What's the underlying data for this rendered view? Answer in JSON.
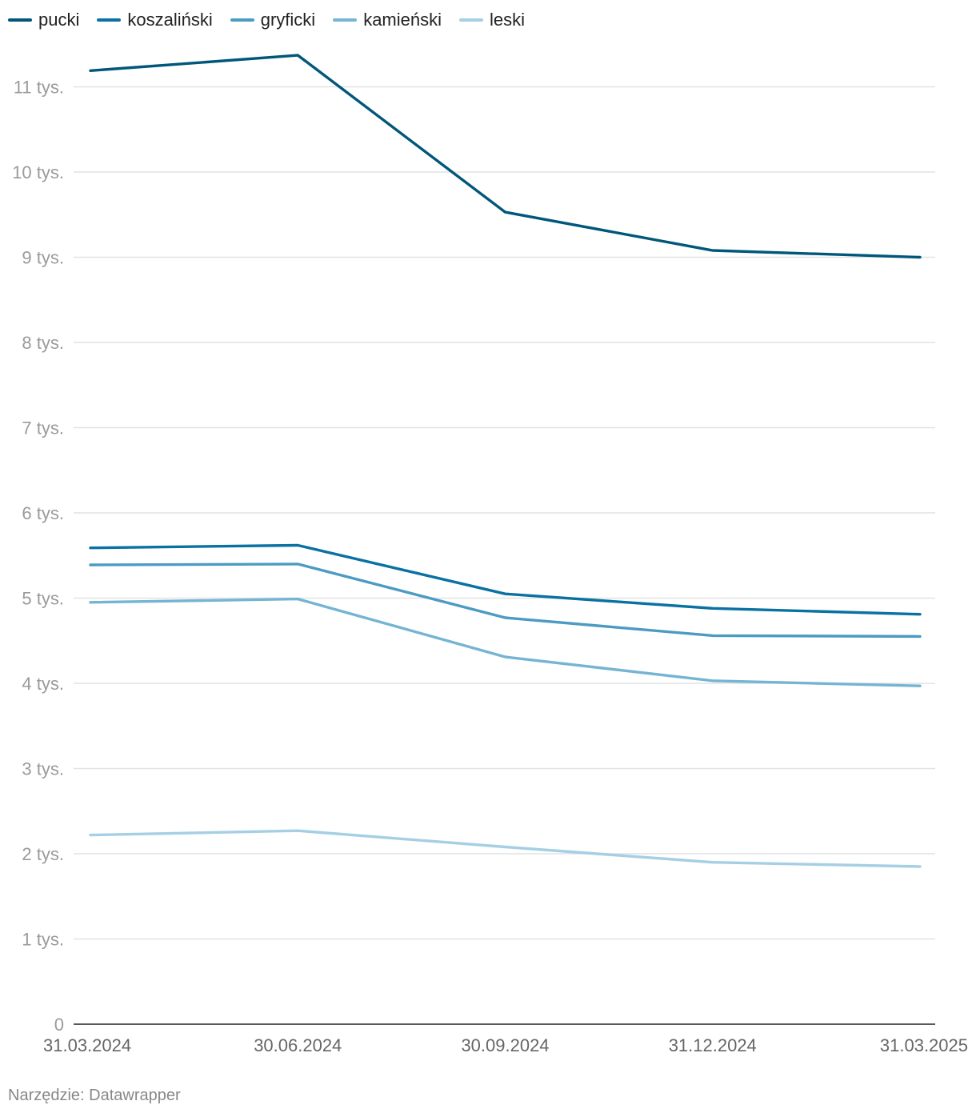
{
  "chart_data": {
    "type": "line",
    "title": "",
    "xlabel": "",
    "ylabel": "",
    "categories": [
      "31.03.2024",
      "30.06.2024",
      "30.09.2024",
      "31.12.2024",
      "31.03.2025"
    ],
    "ylim": [
      0,
      11600
    ],
    "yticks": [
      {
        "value": 0,
        "label": "0"
      },
      {
        "value": 1000,
        "label": "1 tys."
      },
      {
        "value": 2000,
        "label": "2 tys."
      },
      {
        "value": 3000,
        "label": "3 tys."
      },
      {
        "value": 4000,
        "label": "4 tys."
      },
      {
        "value": 5000,
        "label": "5 tys."
      },
      {
        "value": 6000,
        "label": "6 tys."
      },
      {
        "value": 7000,
        "label": "7 tys."
      },
      {
        "value": 8000,
        "label": "8 tys."
      },
      {
        "value": 9000,
        "label": "9 tys."
      },
      {
        "value": 10000,
        "label": "10 tys."
      },
      {
        "value": 11000,
        "label": "11 tys."
      }
    ],
    "grid": true,
    "legend_position": "top-left",
    "series": [
      {
        "name": "pucki",
        "color": "#00577a",
        "values": [
          11190,
          11370,
          9530,
          9080,
          9000
        ]
      },
      {
        "name": "koszaliński",
        "color": "#0a72a3",
        "values": [
          5590,
          5620,
          5050,
          4880,
          4810
        ]
      },
      {
        "name": "gryficki",
        "color": "#4c9bc3",
        "values": [
          5390,
          5400,
          4770,
          4560,
          4550
        ]
      },
      {
        "name": "kamieński",
        "color": "#75b4d3",
        "values": [
          4950,
          4990,
          4310,
          4030,
          3970
        ]
      },
      {
        "name": "leski",
        "color": "#a5cfe4",
        "values": [
          2220,
          2270,
          2080,
          1900,
          1850
        ]
      }
    ]
  },
  "footer": {
    "source": "Narzędzie: Datawrapper"
  }
}
